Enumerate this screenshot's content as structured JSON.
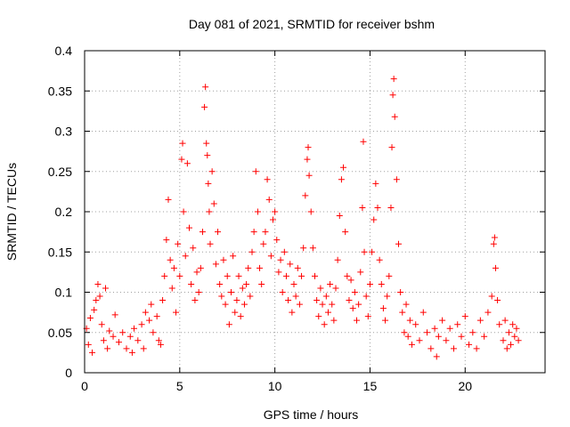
{
  "chart_data": {
    "type": "scatter",
    "title": "Day 081 of 2021, SRMTID for receiver bshm",
    "xlabel": "GPS time / hours",
    "ylabel": "SRMTID / TECUs",
    "xlim": [
      0,
      24.2
    ],
    "ylim": [
      0,
      0.4
    ],
    "x_ticks": [
      0,
      5,
      10,
      15,
      20
    ],
    "x_tick_labels": [
      "0",
      "5",
      "10",
      "15",
      "20"
    ],
    "y_ticks": [
      0,
      0.05,
      0.1,
      0.15,
      0.2,
      0.25,
      0.3,
      0.35,
      0.4
    ],
    "y_tick_labels": [
      "0",
      "0.05",
      "0.1",
      "0.15",
      "0.2",
      "0.25",
      "0.3",
      "0.35",
      "0.4"
    ],
    "grid": true,
    "marker": "+",
    "color": "#ff0000",
    "series": [
      {
        "name": "SRMTID",
        "points": [
          [
            0.1,
            0.055
          ],
          [
            0.2,
            0.035
          ],
          [
            0.3,
            0.068
          ],
          [
            0.4,
            0.025
          ],
          [
            0.5,
            0.078
          ],
          [
            0.6,
            0.09
          ],
          [
            0.7,
            0.11
          ],
          [
            0.8,
            0.095
          ],
          [
            0.9,
            0.06
          ],
          [
            1.0,
            0.04
          ],
          [
            1.1,
            0.105
          ],
          [
            1.2,
            0.03
          ],
          [
            1.3,
            0.052
          ],
          [
            1.5,
            0.045
          ],
          [
            1.6,
            0.072
          ],
          [
            1.8,
            0.038
          ],
          [
            2.0,
            0.05
          ],
          [
            2.2,
            0.03
          ],
          [
            2.4,
            0.045
          ],
          [
            2.5,
            0.025
          ],
          [
            2.6,
            0.055
          ],
          [
            2.8,
            0.04
          ],
          [
            3.0,
            0.06
          ],
          [
            3.1,
            0.03
          ],
          [
            3.2,
            0.075
          ],
          [
            3.4,
            0.065
          ],
          [
            3.5,
            0.085
          ],
          [
            3.6,
            0.05
          ],
          [
            3.8,
            0.07
          ],
          [
            3.9,
            0.04
          ],
          [
            4.0,
            0.035
          ],
          [
            4.1,
            0.09
          ],
          [
            4.2,
            0.12
          ],
          [
            4.3,
            0.165
          ],
          [
            4.4,
            0.215
          ],
          [
            4.5,
            0.14
          ],
          [
            4.6,
            0.105
          ],
          [
            4.7,
            0.13
          ],
          [
            4.8,
            0.075
          ],
          [
            4.9,
            0.16
          ],
          [
            5.0,
            0.12
          ],
          [
            5.1,
            0.265
          ],
          [
            5.15,
            0.285
          ],
          [
            5.2,
            0.2
          ],
          [
            5.3,
            0.145
          ],
          [
            5.4,
            0.26
          ],
          [
            5.5,
            0.18
          ],
          [
            5.6,
            0.11
          ],
          [
            5.7,
            0.155
          ],
          [
            5.8,
            0.09
          ],
          [
            5.9,
            0.125
          ],
          [
            6.0,
            0.1
          ],
          [
            6.1,
            0.13
          ],
          [
            6.2,
            0.175
          ],
          [
            6.3,
            0.33
          ],
          [
            6.35,
            0.355
          ],
          [
            6.4,
            0.285
          ],
          [
            6.45,
            0.27
          ],
          [
            6.5,
            0.235
          ],
          [
            6.55,
            0.2
          ],
          [
            6.6,
            0.16
          ],
          [
            6.7,
            0.25
          ],
          [
            6.8,
            0.21
          ],
          [
            6.9,
            0.135
          ],
          [
            7.0,
            0.175
          ],
          [
            7.1,
            0.11
          ],
          [
            7.2,
            0.095
          ],
          [
            7.3,
            0.14
          ],
          [
            7.4,
            0.085
          ],
          [
            7.5,
            0.12
          ],
          [
            7.6,
            0.06
          ],
          [
            7.7,
            0.1
          ],
          [
            7.8,
            0.145
          ],
          [
            7.9,
            0.075
          ],
          [
            8.0,
            0.09
          ],
          [
            8.1,
            0.12
          ],
          [
            8.2,
            0.07
          ],
          [
            8.3,
            0.105
          ],
          [
            8.4,
            0.085
          ],
          [
            8.5,
            0.11
          ],
          [
            8.6,
            0.13
          ],
          [
            8.7,
            0.095
          ],
          [
            8.8,
            0.15
          ],
          [
            8.9,
            0.175
          ],
          [
            9.0,
            0.25
          ],
          [
            9.1,
            0.2
          ],
          [
            9.2,
            0.13
          ],
          [
            9.3,
            0.11
          ],
          [
            9.4,
            0.16
          ],
          [
            9.5,
            0.175
          ],
          [
            9.6,
            0.24
          ],
          [
            9.7,
            0.215
          ],
          [
            9.8,
            0.145
          ],
          [
            9.9,
            0.19
          ],
          [
            10.0,
            0.2
          ],
          [
            10.1,
            0.165
          ],
          [
            10.2,
            0.125
          ],
          [
            10.3,
            0.14
          ],
          [
            10.4,
            0.1
          ],
          [
            10.5,
            0.15
          ],
          [
            10.6,
            0.12
          ],
          [
            10.7,
            0.09
          ],
          [
            10.8,
            0.135
          ],
          [
            10.9,
            0.075
          ],
          [
            11.0,
            0.11
          ],
          [
            11.1,
            0.095
          ],
          [
            11.2,
            0.13
          ],
          [
            11.3,
            0.085
          ],
          [
            11.4,
            0.12
          ],
          [
            11.5,
            0.155
          ],
          [
            11.6,
            0.22
          ],
          [
            11.7,
            0.265
          ],
          [
            11.75,
            0.28
          ],
          [
            11.8,
            0.245
          ],
          [
            11.9,
            0.2
          ],
          [
            12.0,
            0.155
          ],
          [
            12.1,
            0.12
          ],
          [
            12.2,
            0.09
          ],
          [
            12.3,
            0.07
          ],
          [
            12.4,
            0.105
          ],
          [
            12.5,
            0.085
          ],
          [
            12.6,
            0.06
          ],
          [
            12.7,
            0.095
          ],
          [
            12.8,
            0.075
          ],
          [
            12.9,
            0.11
          ],
          [
            13.0,
            0.085
          ],
          [
            13.1,
            0.065
          ],
          [
            13.2,
            0.105
          ],
          [
            13.3,
            0.14
          ],
          [
            13.4,
            0.195
          ],
          [
            13.5,
            0.24
          ],
          [
            13.6,
            0.255
          ],
          [
            13.7,
            0.175
          ],
          [
            13.8,
            0.12
          ],
          [
            13.9,
            0.09
          ],
          [
            14.0,
            0.115
          ],
          [
            14.1,
            0.08
          ],
          [
            14.2,
            0.1
          ],
          [
            14.3,
            0.065
          ],
          [
            14.4,
            0.085
          ],
          [
            14.5,
            0.125
          ],
          [
            14.6,
            0.205
          ],
          [
            14.65,
            0.287
          ],
          [
            14.7,
            0.15
          ],
          [
            14.8,
            0.095
          ],
          [
            14.9,
            0.07
          ],
          [
            15.0,
            0.11
          ],
          [
            15.1,
            0.15
          ],
          [
            15.2,
            0.19
          ],
          [
            15.3,
            0.235
          ],
          [
            15.4,
            0.205
          ],
          [
            15.5,
            0.14
          ],
          [
            15.6,
            0.11
          ],
          [
            15.7,
            0.08
          ],
          [
            15.8,
            0.065
          ],
          [
            15.9,
            0.095
          ],
          [
            16.0,
            0.12
          ],
          [
            16.1,
            0.205
          ],
          [
            16.15,
            0.28
          ],
          [
            16.2,
            0.345
          ],
          [
            16.25,
            0.365
          ],
          [
            16.3,
            0.318
          ],
          [
            16.4,
            0.24
          ],
          [
            16.5,
            0.16
          ],
          [
            16.6,
            0.1
          ],
          [
            16.7,
            0.075
          ],
          [
            16.8,
            0.05
          ],
          [
            16.9,
            0.085
          ],
          [
            17.0,
            0.045
          ],
          [
            17.1,
            0.065
          ],
          [
            17.2,
            0.035
          ],
          [
            17.4,
            0.06
          ],
          [
            17.6,
            0.04
          ],
          [
            17.8,
            0.075
          ],
          [
            18.0,
            0.05
          ],
          [
            18.2,
            0.03
          ],
          [
            18.4,
            0.055
          ],
          [
            18.5,
            0.02
          ],
          [
            18.6,
            0.045
          ],
          [
            18.8,
            0.065
          ],
          [
            19.0,
            0.04
          ],
          [
            19.2,
            0.055
          ],
          [
            19.4,
            0.03
          ],
          [
            19.6,
            0.06
          ],
          [
            19.8,
            0.045
          ],
          [
            20.0,
            0.07
          ],
          [
            20.2,
            0.035
          ],
          [
            20.4,
            0.05
          ],
          [
            20.6,
            0.03
          ],
          [
            20.8,
            0.065
          ],
          [
            21.0,
            0.045
          ],
          [
            21.2,
            0.075
          ],
          [
            21.4,
            0.095
          ],
          [
            21.5,
            0.16
          ],
          [
            21.55,
            0.168
          ],
          [
            21.6,
            0.13
          ],
          [
            21.7,
            0.09
          ],
          [
            21.8,
            0.06
          ],
          [
            22.0,
            0.04
          ],
          [
            22.1,
            0.065
          ],
          [
            22.2,
            0.03
          ],
          [
            22.3,
            0.05
          ],
          [
            22.4,
            0.035
          ],
          [
            22.5,
            0.06
          ],
          [
            22.6,
            0.045
          ],
          [
            22.7,
            0.055
          ],
          [
            22.8,
            0.04
          ]
        ]
      }
    ]
  }
}
